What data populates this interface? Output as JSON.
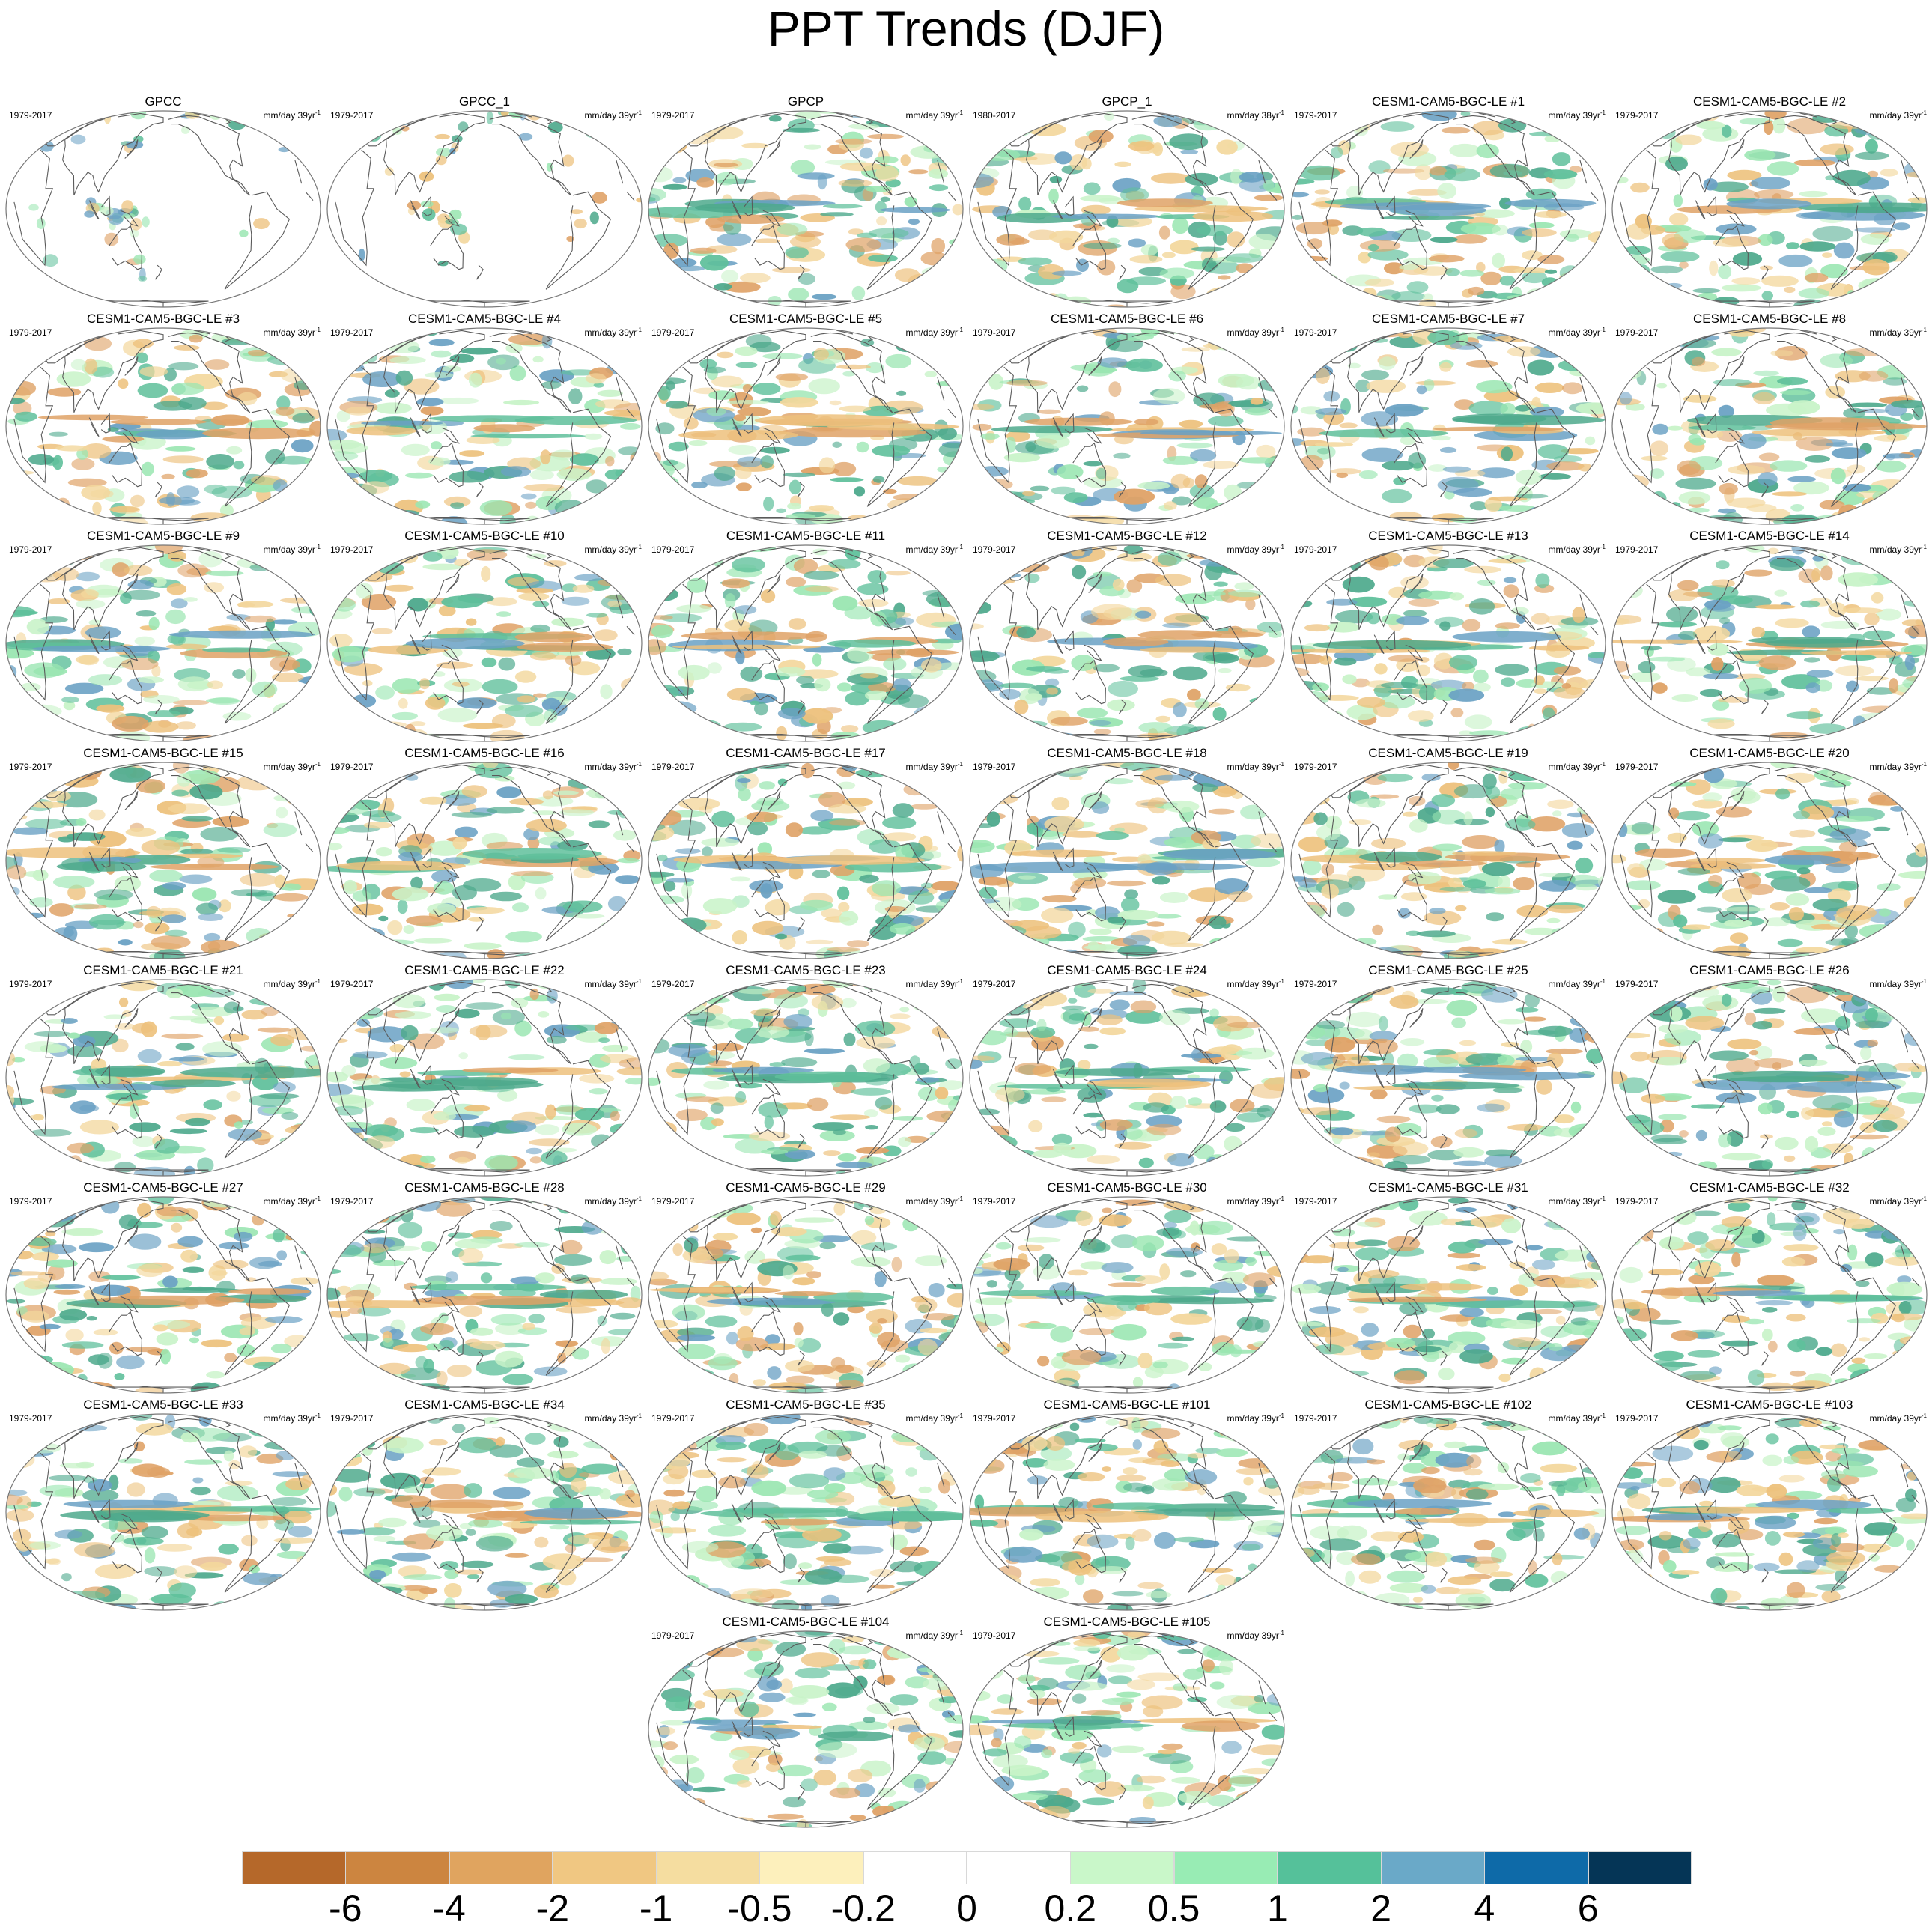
{
  "title": "PPT Trends (DJF)",
  "panels": [
    {
      "name": "GPCC",
      "period": "1979-2017",
      "units": "mm/day 39yr",
      "exp": "-1",
      "coverage": "land"
    },
    {
      "name": "GPCC_1",
      "period": "1979-2017",
      "units": "mm/day 39yr",
      "exp": "-1",
      "coverage": "land"
    },
    {
      "name": "GPCP",
      "period": "1979-2017",
      "units": "mm/day 39yr",
      "exp": "-1",
      "coverage": "global"
    },
    {
      "name": "GPCP_1",
      "period": "1980-2017",
      "units": "mm/day 38yr",
      "exp": "-1",
      "coverage": "global"
    },
    {
      "name": "CESM1-CAM5-BGC-LE #1",
      "period": "1979-2017",
      "units": "mm/day 39yr",
      "exp": "-1",
      "coverage": "global"
    },
    {
      "name": "CESM1-CAM5-BGC-LE #2",
      "period": "1979-2017",
      "units": "mm/day 39yr",
      "exp": "-1",
      "coverage": "global"
    },
    {
      "name": "CESM1-CAM5-BGC-LE #3",
      "period": "1979-2017",
      "units": "mm/day 39yr",
      "exp": "-1",
      "coverage": "global"
    },
    {
      "name": "CESM1-CAM5-BGC-LE #4",
      "period": "1979-2017",
      "units": "mm/day 39yr",
      "exp": "-1",
      "coverage": "global"
    },
    {
      "name": "CESM1-CAM5-BGC-LE #5",
      "period": "1979-2017",
      "units": "mm/day 39yr",
      "exp": "-1",
      "coverage": "global"
    },
    {
      "name": "CESM1-CAM5-BGC-LE #6",
      "period": "1979-2017",
      "units": "mm/day 39yr",
      "exp": "-1",
      "coverage": "global"
    },
    {
      "name": "CESM1-CAM5-BGC-LE #7",
      "period": "1979-2017",
      "units": "mm/day 39yr",
      "exp": "-1",
      "coverage": "global"
    },
    {
      "name": "CESM1-CAM5-BGC-LE #8",
      "period": "1979-2017",
      "units": "mm/day 39yr",
      "exp": "-1",
      "coverage": "global"
    },
    {
      "name": "CESM1-CAM5-BGC-LE #9",
      "period": "1979-2017",
      "units": "mm/day 39yr",
      "exp": "-1",
      "coverage": "global"
    },
    {
      "name": "CESM1-CAM5-BGC-LE #10",
      "period": "1979-2017",
      "units": "mm/day 39yr",
      "exp": "-1",
      "coverage": "global"
    },
    {
      "name": "CESM1-CAM5-BGC-LE #11",
      "period": "1979-2017",
      "units": "mm/day 39yr",
      "exp": "-1",
      "coverage": "global"
    },
    {
      "name": "CESM1-CAM5-BGC-LE #12",
      "period": "1979-2017",
      "units": "mm/day 39yr",
      "exp": "-1",
      "coverage": "global"
    },
    {
      "name": "CESM1-CAM5-BGC-LE #13",
      "period": "1979-2017",
      "units": "mm/day 39yr",
      "exp": "-1",
      "coverage": "global"
    },
    {
      "name": "CESM1-CAM5-BGC-LE #14",
      "period": "1979-2017",
      "units": "mm/day 39yr",
      "exp": "-1",
      "coverage": "global"
    },
    {
      "name": "CESM1-CAM5-BGC-LE #15",
      "period": "1979-2017",
      "units": "mm/day 39yr",
      "exp": "-1",
      "coverage": "global"
    },
    {
      "name": "CESM1-CAM5-BGC-LE #16",
      "period": "1979-2017",
      "units": "mm/day 39yr",
      "exp": "-1",
      "coverage": "global"
    },
    {
      "name": "CESM1-CAM5-BGC-LE #17",
      "period": "1979-2017",
      "units": "mm/day 39yr",
      "exp": "-1",
      "coverage": "global"
    },
    {
      "name": "CESM1-CAM5-BGC-LE #18",
      "period": "1979-2017",
      "units": "mm/day 39yr",
      "exp": "-1",
      "coverage": "global"
    },
    {
      "name": "CESM1-CAM5-BGC-LE #19",
      "period": "1979-2017",
      "units": "mm/day 39yr",
      "exp": "-1",
      "coverage": "global"
    },
    {
      "name": "CESM1-CAM5-BGC-LE #20",
      "period": "1979-2017",
      "units": "mm/day 39yr",
      "exp": "-1",
      "coverage": "global"
    },
    {
      "name": "CESM1-CAM5-BGC-LE #21",
      "period": "1979-2017",
      "units": "mm/day 39yr",
      "exp": "-1",
      "coverage": "global"
    },
    {
      "name": "CESM1-CAM5-BGC-LE #22",
      "period": "1979-2017",
      "units": "mm/day 39yr",
      "exp": "-1",
      "coverage": "global"
    },
    {
      "name": "CESM1-CAM5-BGC-LE #23",
      "period": "1979-2017",
      "units": "mm/day 39yr",
      "exp": "-1",
      "coverage": "global"
    },
    {
      "name": "CESM1-CAM5-BGC-LE #24",
      "period": "1979-2017",
      "units": "mm/day 39yr",
      "exp": "-1",
      "coverage": "global"
    },
    {
      "name": "CESM1-CAM5-BGC-LE #25",
      "period": "1979-2017",
      "units": "mm/day 39yr",
      "exp": "-1",
      "coverage": "global"
    },
    {
      "name": "CESM1-CAM5-BGC-LE #26",
      "period": "1979-2017",
      "units": "mm/day 39yr",
      "exp": "-1",
      "coverage": "global"
    },
    {
      "name": "CESM1-CAM5-BGC-LE #27",
      "period": "1979-2017",
      "units": "mm/day 39yr",
      "exp": "-1",
      "coverage": "global"
    },
    {
      "name": "CESM1-CAM5-BGC-LE #28",
      "period": "1979-2017",
      "units": "mm/day 39yr",
      "exp": "-1",
      "coverage": "global"
    },
    {
      "name": "CESM1-CAM5-BGC-LE #29",
      "period": "1979-2017",
      "units": "mm/day 39yr",
      "exp": "-1",
      "coverage": "global"
    },
    {
      "name": "CESM1-CAM5-BGC-LE #30",
      "period": "1979-2017",
      "units": "mm/day 39yr",
      "exp": "-1",
      "coverage": "global"
    },
    {
      "name": "CESM1-CAM5-BGC-LE #31",
      "period": "1979-2017",
      "units": "mm/day 39yr",
      "exp": "-1",
      "coverage": "global"
    },
    {
      "name": "CESM1-CAM5-BGC-LE #32",
      "period": "1979-2017",
      "units": "mm/day 39yr",
      "exp": "-1",
      "coverage": "global"
    },
    {
      "name": "CESM1-CAM5-BGC-LE #33",
      "period": "1979-2017",
      "units": "mm/day 39yr",
      "exp": "-1",
      "coverage": "global"
    },
    {
      "name": "CESM1-CAM5-BGC-LE #34",
      "period": "1979-2017",
      "units": "mm/day 39yr",
      "exp": "-1",
      "coverage": "global"
    },
    {
      "name": "CESM1-CAM5-BGC-LE #35",
      "period": "1979-2017",
      "units": "mm/day 39yr",
      "exp": "-1",
      "coverage": "global"
    },
    {
      "name": "CESM1-CAM5-BGC-LE #101",
      "period": "1979-2017",
      "units": "mm/day 39yr",
      "exp": "-1",
      "coverage": "global"
    },
    {
      "name": "CESM1-CAM5-BGC-LE #102",
      "period": "1979-2017",
      "units": "mm/day 39yr",
      "exp": "-1",
      "coverage": "global"
    },
    {
      "name": "CESM1-CAM5-BGC-LE #103",
      "period": "1979-2017",
      "units": "mm/day 39yr",
      "exp": "-1",
      "coverage": "global"
    },
    {
      "name": "CESM1-CAM5-BGC-LE #104",
      "period": "1979-2017",
      "units": "mm/day 39yr",
      "exp": "-1",
      "coverage": "global"
    },
    {
      "name": "CESM1-CAM5-BGC-LE #105",
      "period": "1979-2017",
      "units": "mm/day 39yr",
      "exp": "-1",
      "coverage": "global"
    }
  ],
  "colorbar": {
    "colors": [
      "#b5682a",
      "#cc8540",
      "#e0a45f",
      "#f0c782",
      "#f5dda0",
      "#fdf0bc",
      "#ffffff",
      "#ffffff",
      "#c9f7c9",
      "#98ecb4",
      "#55c19a",
      "#6aa9c8",
      "#0e6aa8",
      "#053556"
    ],
    "labels": [
      "-6",
      "-4",
      "-2",
      "-1",
      "-0.5",
      "-0.2",
      "0",
      "0.2",
      "0.5",
      "1",
      "2",
      "4",
      "6"
    ]
  },
  "colors": {
    "land_outline": "#5a5a5a",
    "map_outline": "#777777",
    "blob_palette": [
      "#c8f3c8",
      "#9ae6b1",
      "#5fc09b",
      "#4da98c",
      "#f3d79c",
      "#edc17c",
      "#dfa266",
      "#6aa1c4"
    ]
  }
}
